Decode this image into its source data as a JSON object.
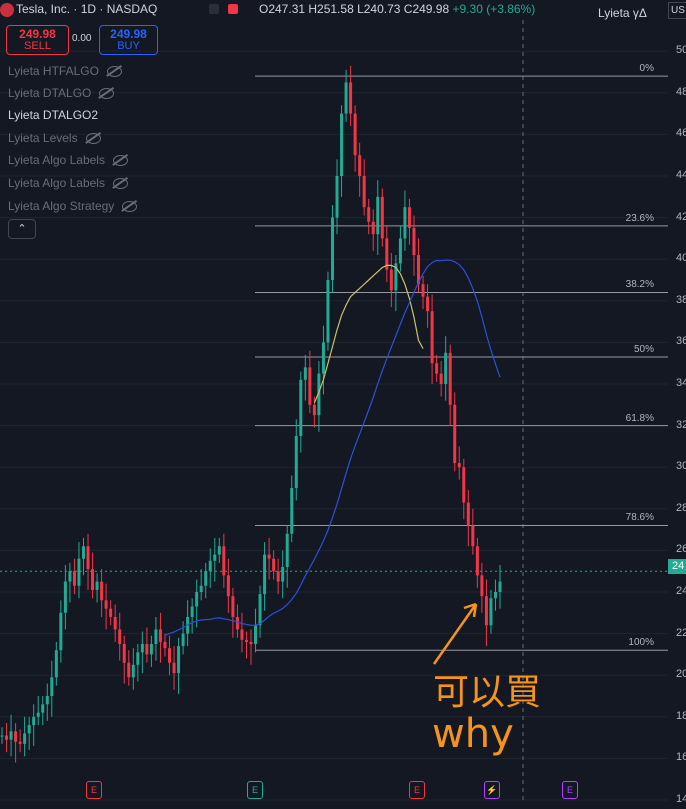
{
  "header": {
    "symbol_title": "Tesla, Inc. · 1D · NASDAQ",
    "ohlc_text": "O247.31 H251.58 L240.73 C249.98",
    "change_text": "+9.30 (+3.86%)",
    "indicator_name": "Lyieta γΔ",
    "currency_button": "US"
  },
  "trade": {
    "sell_price": "249.98",
    "sell_label": "SELL",
    "spread": "0.00",
    "buy_price": "249.98",
    "buy_label": "BUY"
  },
  "legend": [
    {
      "label": "Lyieta HTFALGO",
      "active": false
    },
    {
      "label": "Lyieta DTALGO",
      "active": false
    },
    {
      "label": "Lyieta DTALGO2",
      "active": true
    },
    {
      "label": "Lyieta Levels",
      "active": false
    },
    {
      "label": "Lyieta Algo Labels",
      "active": false
    },
    {
      "label": "Lyieta Algo Labels",
      "active": false
    },
    {
      "label": "Lyieta Algo Strategy",
      "active": false
    }
  ],
  "collapse_glyph": "⌃",
  "current_price_tag": "24",
  "annotation": {
    "line1": "可以買",
    "line2": "why",
    "arrow_color": "#f7931a"
  },
  "events": [
    {
      "label": "E",
      "type": "earnings-past",
      "color": "#f23645"
    },
    {
      "label": "E",
      "type": "earnings-past",
      "color": "#22ab94"
    },
    {
      "label": "E",
      "type": "earnings-past",
      "color": "#f23645"
    },
    {
      "label": "⚡",
      "type": "split",
      "color": "#b042ff"
    },
    {
      "label": "E",
      "type": "earnings-future",
      "color": "#b042ff"
    }
  ],
  "chart_data": {
    "type": "line",
    "ylim": [
      140,
      515
    ],
    "y_ticks": [
      "50",
      "48",
      "46",
      "44",
      "42",
      "40",
      "38",
      "36",
      "34",
      "32",
      "30",
      "28",
      "26",
      "24",
      "22",
      "20",
      "18",
      "16",
      "14"
    ],
    "fib_levels": [
      {
        "label": "0%",
        "value": 488
      },
      {
        "label": "23.6%",
        "value": 416
      },
      {
        "label": "38.2%",
        "value": 384
      },
      {
        "label": "50%",
        "value": 353
      },
      {
        "label": "61.8%",
        "value": 320
      },
      {
        "label": "78.6%",
        "value": 272
      },
      {
        "label": "100%",
        "value": 212
      }
    ],
    "series": [
      {
        "kind": "close",
        "color": "#22ab94",
        "values": [
          171,
          169,
          173,
          168,
          167,
          172,
          176,
          180,
          182,
          186,
          190,
          199,
          212,
          230,
          245,
          250,
          243,
          256,
          262,
          251,
          241,
          245,
          236,
          232,
          228,
          222,
          215,
          206,
          199,
          205,
          211,
          215,
          210,
          215,
          222,
          216,
          213,
          206,
          201,
          214,
          220,
          228,
          233,
          240,
          243,
          250,
          255,
          258,
          262,
          248,
          238,
          228,
          222,
          217,
          216,
          215,
          224,
          239,
          258,
          256,
          250,
          245,
          252,
          268,
          290,
          315,
          342,
          348,
          330,
          325,
          345,
          360,
          390,
          420,
          440,
          470,
          485,
          470,
          450,
          440,
          425,
          418,
          412,
          430,
          410,
          395,
          385,
          398,
          410,
          425,
          415,
          402,
          388,
          382,
          375,
          350,
          345,
          340,
          355,
          330,
          302,
          300,
          283,
          272,
          262,
          248,
          238,
          224,
          237,
          240,
          245
        ]
      },
      {
        "kind": "sma-fast",
        "color": "#c9c36a",
        "values": [
          null,
          null,
          null,
          null,
          null,
          null,
          null,
          null,
          null,
          null,
          null,
          null,
          null,
          null,
          null,
          null,
          null,
          null,
          null,
          null,
          null,
          null,
          null,
          null,
          null,
          null,
          null,
          null,
          null,
          null,
          null,
          null,
          null,
          null,
          null,
          null,
          null,
          null,
          null,
          null,
          null,
          null,
          null,
          null,
          null,
          null,
          null,
          null,
          null,
          null,
          null,
          null,
          null,
          null,
          null,
          null,
          null,
          null,
          null,
          null,
          null,
          null,
          null,
          null,
          null,
          null,
          null,
          null,
          null,
          331,
          336,
          342,
          350,
          358,
          366,
          373,
          378,
          382,
          384,
          386,
          388,
          390,
          392,
          394,
          396,
          397,
          397,
          396,
          393,
          388,
          381,
          372,
          361,
          357
        ]
      },
      {
        "kind": "sma-slow",
        "color": "#2f4fd8",
        "values": [
          null,
          null,
          null,
          null,
          null,
          null,
          null,
          null,
          null,
          null,
          null,
          null,
          null,
          null,
          null,
          null,
          null,
          null,
          null,
          null,
          null,
          null,
          null,
          null,
          null,
          null,
          null,
          null,
          null,
          null,
          null,
          null,
          null,
          null,
          null,
          null,
          null,
          null,
          null,
          null,
          null,
          null,
          null,
          null,
          null,
          null,
          null,
          null,
          null,
          null,
          null,
          null,
          null,
          null,
          null,
          null,
          null,
          null,
          null,
          null,
          null,
          null,
          null,
          null,
          null,
          null,
          null,
          null,
          null,
          null,
          null,
          null,
          null,
          null,
          null,
          null,
          null,
          null,
          null,
          null,
          null,
          null,
          null,
          null,
          null,
          null,
          null,
          null,
          null,
          null,
          null,
          null,
          null,
          null,
          null,
          null,
          null,
          null,
          null,
          null,
          null,
          null,
          null,
          null,
          null,
          null,
          null,
          null,
          null,
          null,
          null
        ]
      }
    ]
  }
}
